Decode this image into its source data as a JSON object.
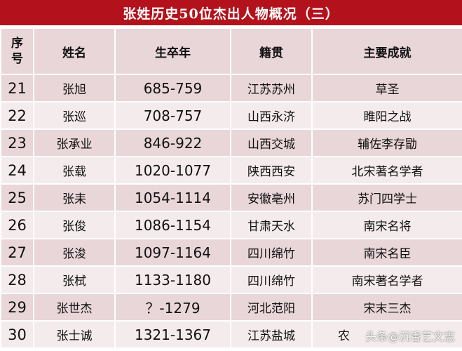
{
  "title": "张姓历史50位杰出人物概况（三）",
  "headers": {
    "seq_line1": "序",
    "seq_line2": "号",
    "name": "姓名",
    "years": "生卒年",
    "origin": "籍贯",
    "achievement": "主要成就"
  },
  "rows": [
    {
      "num": "21",
      "name": "张旭",
      "years": "685-759",
      "origin": "江苏苏州",
      "achievement": "草圣"
    },
    {
      "num": "22",
      "name": "张巡",
      "years": "708-757",
      "origin": "山西永济",
      "achievement": "睢阳之战"
    },
    {
      "num": "23",
      "name": "张承业",
      "years": "846-922",
      "origin": "山西交城",
      "achievement": "辅佐李存勖"
    },
    {
      "num": "24",
      "name": "张载",
      "years": "1020-1077",
      "origin": "陕西西安",
      "achievement": "北宋著名学者"
    },
    {
      "num": "25",
      "name": "张耒",
      "years": "1054-1114",
      "origin": "安徽亳州",
      "achievement": "苏门四学士"
    },
    {
      "num": "26",
      "name": "张俊",
      "years": "1086-1154",
      "origin": "甘肃天水",
      "achievement": "南宋名将"
    },
    {
      "num": "27",
      "name": "张浚",
      "years": "1097-1164",
      "origin": "四川绵竹",
      "achievement": "南宋名臣"
    },
    {
      "num": "28",
      "name": "张栻",
      "years": "1133-1180",
      "origin": "四川绵竹",
      "achievement": "南宋著名学者"
    },
    {
      "num": "29",
      "name": "张世杰",
      "years": "？-1279",
      "origin": "河北范阳",
      "achievement": "宋末三杰"
    },
    {
      "num": "30",
      "name": "张士诚",
      "years": "1321-1367",
      "origin": "江苏盐城",
      "achievement": "农"
    }
  ],
  "watermark": "头条@沉香艺文志",
  "colors": {
    "title_bg": "#b3121c",
    "row_dark": "#e9d6d9",
    "row_light": "#f4ebec"
  }
}
